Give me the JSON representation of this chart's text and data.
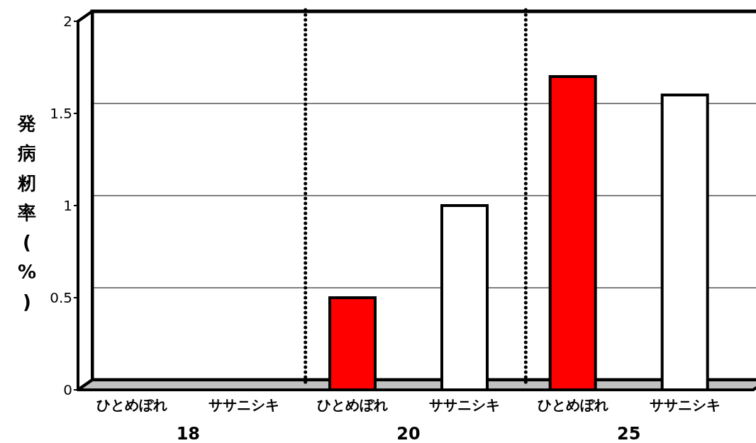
{
  "chart_data": {
    "type": "bar",
    "ylabel": "発病籾率(%)",
    "categories": [
      "18",
      "20",
      "25"
    ],
    "series": [
      {
        "name": "ひとめぼれ",
        "color": "#ff0000",
        "values": [
          0,
          0.5,
          1.7
        ]
      },
      {
        "name": "ササニシキ",
        "color": "#ffffff",
        "values": [
          0,
          1.0,
          1.6
        ]
      }
    ],
    "ylim": [
      0,
      2
    ],
    "yticks": [
      0,
      0.5,
      1,
      1.5,
      2
    ],
    "grid": "y",
    "legend": "bottom"
  }
}
